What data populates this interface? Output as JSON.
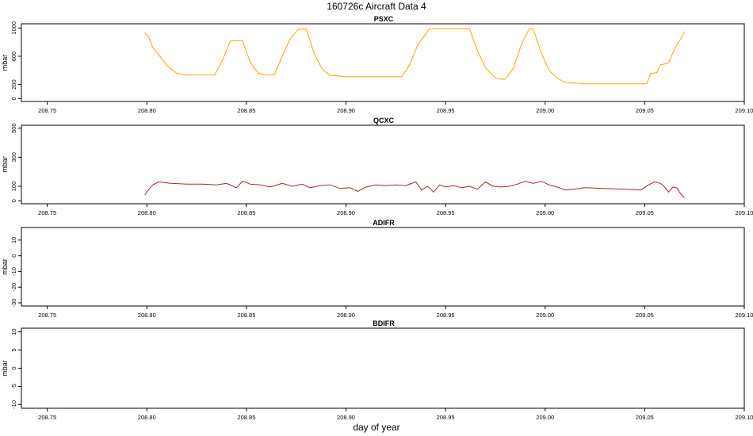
{
  "title": "160726c   Aircraft Data 4",
  "xlabel": "day of year",
  "colors": {
    "psxc": "#FFA500",
    "qcxc": "#A52A2A",
    "axis": "#000000"
  },
  "chart_data": [
    {
      "type": "line",
      "title": "PSXC",
      "ylabel": "mbar",
      "xlim": [
        208.737,
        209.1
      ],
      "ylim": [
        -40,
        1060
      ],
      "xticks": [
        "208.75",
        "208.80",
        "208.85",
        "208.90",
        "208.95",
        "209.00",
        "209.05",
        "209.10"
      ],
      "yticks": [
        "0",
        "200",
        "600",
        "1000"
      ],
      "series": [
        {
          "color": "#FFA500",
          "x": [
            208.799,
            208.801,
            208.803,
            208.806,
            208.81,
            208.815,
            208.82,
            208.826,
            208.834,
            208.838,
            208.842,
            208.848,
            208.852,
            208.856,
            208.86,
            208.864,
            208.868,
            208.872,
            208.876,
            208.88,
            208.884,
            208.888,
            208.892,
            208.9,
            208.91,
            208.92,
            208.928,
            208.932,
            208.936,
            208.942,
            208.95,
            208.958,
            208.962,
            208.966,
            208.97,
            208.974,
            208.976,
            208.98,
            208.984,
            208.988,
            208.992,
            208.994,
            208.998,
            209.002,
            209.006,
            209.01,
            209.02,
            209.04,
            209.051,
            209.053,
            209.056,
            209.058,
            209.06,
            209.062,
            209.064,
            209.066,
            209.068,
            209.07
          ],
          "y": [
            930,
            870,
            720,
            620,
            470,
            360,
            335,
            335,
            335,
            550,
            820,
            820,
            510,
            360,
            330,
            340,
            600,
            850,
            980,
            990,
            640,
            420,
            330,
            310,
            310,
            310,
            310,
            480,
            760,
            990,
            990,
            990,
            990,
            680,
            440,
            320,
            280,
            275,
            430,
            760,
            990,
            990,
            650,
            400,
            290,
            230,
            210,
            210,
            210,
            355,
            370,
            480,
            490,
            510,
            640,
            760,
            840,
            950
          ]
        }
      ]
    },
    {
      "type": "line",
      "title": "QCXC",
      "ylabel": "mbar",
      "xlim": [
        208.737,
        209.1
      ],
      "ylim": [
        -20,
        520
      ],
      "xticks": [
        "208.75",
        "208.80",
        "208.85",
        "208.90",
        "208.95",
        "209.00",
        "209.05",
        "209.10"
      ],
      "yticks": [
        "0",
        "100",
        "300",
        "500"
      ],
      "series": [
        {
          "color": "#A52A2A",
          "x": [
            208.799,
            208.801,
            208.803,
            208.806,
            208.812,
            208.82,
            208.828,
            208.835,
            208.84,
            208.845,
            208.848,
            208.852,
            208.857,
            208.862,
            208.868,
            208.873,
            208.878,
            208.882,
            208.887,
            208.892,
            208.897,
            208.902,
            208.906,
            208.91,
            208.915,
            208.92,
            208.925,
            208.93,
            208.935,
            208.938,
            208.941,
            208.944,
            208.947,
            208.95,
            208.954,
            208.958,
            208.962,
            208.966,
            208.97,
            208.974,
            208.978,
            208.982,
            208.986,
            208.99,
            208.994,
            208.998,
            209.002,
            209.006,
            209.01,
            209.014,
            209.02,
            209.03,
            209.04,
            209.048,
            209.052,
            209.055,
            209.058,
            209.06,
            209.062,
            209.064,
            209.066,
            209.068,
            209.07
          ],
          "y": [
            40,
            80,
            110,
            130,
            120,
            115,
            115,
            110,
            120,
            90,
            135,
            115,
            110,
            95,
            120,
            100,
            115,
            90,
            105,
            110,
            85,
            90,
            65,
            95,
            110,
            105,
            110,
            105,
            130,
            75,
            100,
            60,
            110,
            95,
            105,
            90,
            100,
            80,
            130,
            100,
            95,
            100,
            115,
            135,
            120,
            135,
            110,
            95,
            75,
            80,
            90,
            85,
            80,
            75,
            110,
            130,
            120,
            95,
            60,
            95,
            90,
            50,
            20
          ]
        }
      ]
    },
    {
      "type": "line",
      "title": "ADIFR",
      "ylabel": "mbar",
      "xlim": [
        208.737,
        209.1
      ],
      "ylim": [
        -32,
        18
      ],
      "xticks": [
        "208.75",
        "208.80",
        "208.85",
        "208.90",
        "208.95",
        "209.00",
        "209.05",
        "209.10"
      ],
      "yticks": [
        "-30",
        "-20",
        "-10",
        "0",
        "10"
      ],
      "series": []
    },
    {
      "type": "line",
      "title": "BDIFR",
      "ylabel": "mbar",
      "xlim": [
        208.737,
        209.1
      ],
      "ylim": [
        -11,
        11
      ],
      "xticks": [
        "208.75",
        "208.80",
        "208.85",
        "208.90",
        "208.95",
        "209.00",
        "209.05",
        "209.10"
      ],
      "yticks": [
        "-10",
        "-5",
        "0",
        "5",
        "10"
      ],
      "series": []
    }
  ]
}
